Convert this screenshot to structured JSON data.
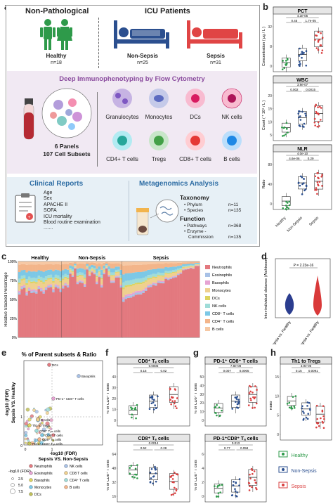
{
  "panel_labels": [
    "a",
    "b",
    "c",
    "d",
    "e",
    "f",
    "g",
    "h"
  ],
  "panel_a": {
    "groups": [
      {
        "title": "Non-Pathological",
        "name": "Healthy",
        "n": "n=18",
        "color": "#2e9a4a"
      },
      {
        "title": "ICU Patients",
        "name": "Non-Sepsis",
        "n": "n=25",
        "color": "#2b4f8f"
      },
      {
        "name": "Sepsis",
        "n": "n=31",
        "color": "#d94040"
      }
    ],
    "icu_title": "ICU Patients",
    "immuno_title": "Deep Immunophenotyping by Flow Cytometry",
    "panels_label": "6 Panels",
    "subsets_label": "107 Cell Subsets",
    "cell_types_row1": [
      "Granulocytes",
      "Monocytes",
      "DCs",
      "NK cells"
    ],
    "cell_types_row2": [
      "CD4+ T cells",
      "Tregs",
      "CD8+ T cells",
      "B cells"
    ],
    "clinical_title": "Clinical Reports",
    "clinical_items": [
      "Age",
      "Sex",
      "APACHE II",
      "SOFA",
      "ICU mortality",
      "Blood routine examination",
      "......."
    ],
    "metagenomics_title": "Metagenomics Analysis",
    "taxonomy_title": "Taxonomy",
    "taxonomy_items": [
      "Phylum",
      "Species"
    ],
    "taxonomy_counts": [
      "n=11",
      "n=135"
    ],
    "function_title": "Function",
    "function_items": [
      "Pathways",
      "Enzyme -",
      "Commission"
    ],
    "function_counts": [
      "n=368",
      "",
      "n=135"
    ]
  },
  "chart_data": [
    {
      "id": "b-pct",
      "type": "box",
      "title": "PCT",
      "ylabel": "Concentration ( μg / L )",
      "categories": [
        "Healthy",
        "Non-Sepsis",
        "Sepsis"
      ],
      "yticks": [
        "0",
        "8",
        "32"
      ],
      "pvalues": [
        "4.3e-05",
        "0.45",
        "1.7e-05"
      ],
      "medians": [
        0.1,
        1.5,
        12
      ]
    },
    {
      "id": "b-wbc",
      "type": "box",
      "title": "WBC",
      "ylabel": "Count ( * 10⁹ / L )",
      "categories": [
        "Healthy",
        "Non-Sepsis",
        "Sepsis"
      ],
      "yticks": [
        "5",
        "10",
        "15",
        "20"
      ],
      "pvalues": [
        "3.9e-07",
        "0.002",
        "0.0015"
      ],
      "medians": [
        6,
        11,
        13
      ]
    },
    {
      "id": "b-nlr",
      "type": "box",
      "title": "NLR",
      "ylabel": "Ratio",
      "categories": [
        "Healthy",
        "Non-Sepsis",
        "Sepsis"
      ],
      "yticks": [
        "0",
        "40",
        "80"
      ],
      "pvalues": [
        "4.0e-10",
        "4.6e-06",
        "0.29"
      ],
      "medians": [
        3,
        18,
        20
      ]
    },
    {
      "id": "c",
      "type": "bar",
      "title": "",
      "ylabel": "Relative Stacked Percentage",
      "groups": [
        "Healthy",
        "Non-Sepsis",
        "Sepsis"
      ],
      "yticks": [
        "0%",
        "25%",
        "50%",
        "75%",
        "100%"
      ],
      "legend": [
        "Neutrophils",
        "Eosinophils",
        "Basophils",
        "Monocytes",
        "DCs",
        "NK cells",
        "CD8⁺ T cells",
        "CD4⁺ T cells",
        "B cells"
      ]
    },
    {
      "id": "d",
      "type": "violin",
      "title": "",
      "ylabel": "Inter-individual distance (Atchinson)",
      "categories": [
        "Non-Sepsis vs. Healthy",
        "Sepsis vs. Healthy"
      ],
      "pvalue": "P = 2.23e-16"
    },
    {
      "id": "e",
      "type": "scatter",
      "title": "% of Parent subsets & Ratio",
      "xlabel": "-log10 (FDR)",
      "xlabel2": "Sepsis VS. Non-Sepsis",
      "ylabel": "-log10 (FDR)",
      "ylabel2": "Sepsis VS. Healthy",
      "xticks": [
        "0",
        "1"
      ],
      "yticks": [
        "0",
        "1"
      ],
      "labels": [
        "DCs",
        "Basophils",
        "PD-1⁺ CD8⁺ T cells",
        "B cells",
        "Th1 to Tregs",
        "CD8⁺ Tₑₘ cells",
        "CD8⁺ T cells",
        "CD8⁺ Tₑ cells",
        "PD-1⁺ CD8⁺ Tₐₙ cells"
      ],
      "size_legend_title": "-log10 (FDR)",
      "size_legend": [
        "2.5",
        "5.0",
        "7.5"
      ],
      "color_legend": [
        "Neutrophils",
        "NK cells",
        "Eosinophils",
        "CD8 T cells",
        "Basophils",
        "CD4⁺ T cells",
        "Monocytes",
        "B cells",
        "DCs"
      ]
    },
    {
      "id": "f-top",
      "type": "box",
      "title": "CD8⁺ Tₑ cells",
      "ylabel": "% of CD8⁺ T cells",
      "yticks": [
        "0",
        "10",
        "20",
        "30",
        "40"
      ],
      "pvalues": [
        "0.0005",
        "0.15",
        "0.02"
      ]
    },
    {
      "id": "f-bot",
      "type": "box",
      "title": "CD8⁺ Tₑ cells",
      "ylabel": "% of CD8⁺ T cells",
      "yticks": [
        "16",
        "32",
        "48",
        "64"
      ],
      "pvalues": [
        "0.0014",
        "0.52",
        "0.28"
      ]
    },
    {
      "id": "g-top",
      "type": "box",
      "title": "PD-1⁺ CD8⁺ T cells",
      "ylabel": "% of CD8⁺ T cells",
      "yticks": [
        "0",
        "10",
        "20",
        "30",
        "40",
        "50"
      ],
      "pvalues": [
        "7.8e-08",
        "0.007",
        "0.0005"
      ]
    },
    {
      "id": "g-bot",
      "type": "box",
      "title": "PD-1⁺CD8⁺ Tₐ cells",
      "ylabel": "% of CD8⁺ T cells",
      "yticks": [
        "0",
        "2",
        "4",
        "6"
      ],
      "pvalues": [
        "0.013",
        "0.77",
        "0.058"
      ]
    },
    {
      "id": "h",
      "type": "box",
      "title": "Th1 to Tregs",
      "ylabel": "Ratio",
      "yticks": [
        "0",
        "5",
        "10",
        "15"
      ],
      "pvalues": [
        "3.9e-05",
        "0.15",
        "0.0091"
      ]
    }
  ],
  "legend_h": [
    {
      "name": "Healthy",
      "color": "#2e9a4a"
    },
    {
      "name": "Non-Sepsis",
      "color": "#2b4f8f"
    },
    {
      "name": "Sepsis",
      "color": "#d94040"
    }
  ],
  "stack_colors": [
    "#e3797f",
    "#a8c1e6",
    "#e6a3d3",
    "#efd08e",
    "#ddd35f",
    "#9fdcd8",
    "#7cc8e6",
    "#f3b58a",
    "#f6c8a4"
  ]
}
